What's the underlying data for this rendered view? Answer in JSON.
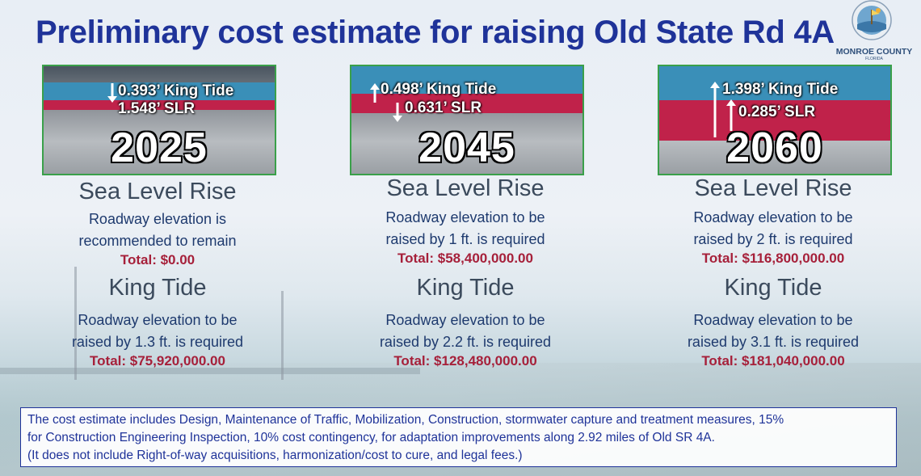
{
  "title": "Preliminary cost estimate for raising Old State Rd 4A",
  "logo": {
    "name": "MONROE COUNTY",
    "sub": "FLORIDA"
  },
  "columns": [
    {
      "year": "2025",
      "king_tide_photo": "0.393’ King Tide",
      "slr_photo": "1.548’ SLR",
      "slr_heading": "Sea Level Rise",
      "slr_desc_1": "Roadway elevation is",
      "slr_desc_2": "recommended to remain",
      "slr_total": "Total: $0.00",
      "kt_heading": "King Tide",
      "kt_desc_1": "Roadway elevation to be",
      "kt_desc_2": "raised by 1.3 ft. is required",
      "kt_total": "Total: $75,920,000.00"
    },
    {
      "year": "2045",
      "king_tide_photo": "0.498’ King Tide",
      "slr_photo": "0.631’ SLR",
      "slr_heading": "Sea Level Rise",
      "slr_desc_1": "Roadway elevation to be",
      "slr_desc_2": "raised by 1 ft. is required",
      "slr_total": "Total: $58,400,000.00",
      "kt_heading": "King Tide",
      "kt_desc_1": "Roadway elevation to be",
      "kt_desc_2": "raised by 2.2 ft. is required",
      "kt_total": "Total: $128,480,000.00"
    },
    {
      "year": "2060",
      "king_tide_photo": "1.398’ King Tide",
      "slr_photo": "0.285’ SLR",
      "slr_heading": "Sea Level Rise",
      "slr_desc_1": "Roadway elevation to be",
      "slr_desc_2": "raised by 2 ft. is required",
      "slr_total": "Total: $116,800,000.00",
      "kt_heading": "King Tide",
      "kt_desc_1": "Roadway elevation to be",
      "kt_desc_2": "raised by 3.1 ft. is required",
      "kt_total": "Total: $181,040,000.00"
    }
  ],
  "note": {
    "line1": "The cost estimate includes Design, Maintenance of Traffic, Mobilization, Construction, stormwater capture and treatment measures, 15%",
    "line2": "for Construction Engineering Inspection, 10% cost contingency, for adaptation improvements along 2.92 miles of Old SR 4A.",
    "line3": "(It does not include Right-of-way acquisitions, harmonization/cost to cure, and legal fees.)"
  },
  "colors": {
    "title": "#1f3399",
    "total": "#a6203a",
    "band_red": "#c0224a",
    "band_blue": "#3a8fb8"
  }
}
